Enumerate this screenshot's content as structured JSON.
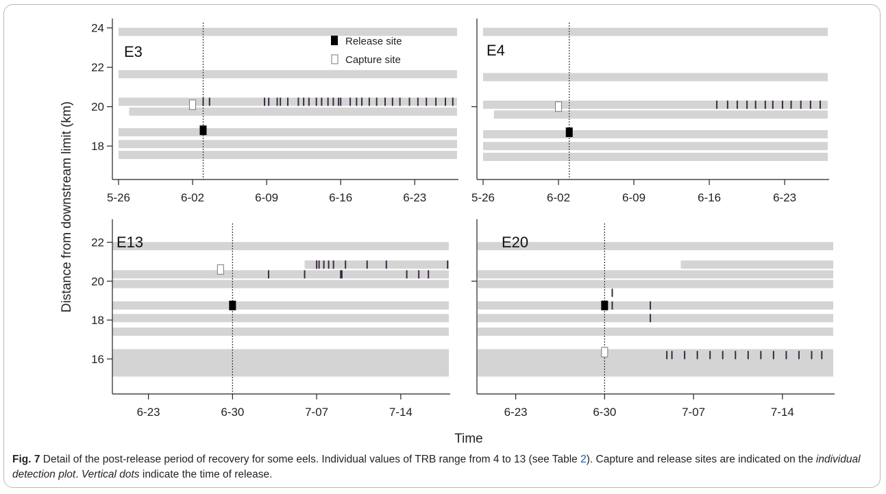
{
  "chart_data": [
    {
      "type": "scatter",
      "label": "E3",
      "x_ticks": [
        "5-26",
        "6-02",
        "6-09",
        "6-16",
        "6-23"
      ],
      "y_ticks": [
        "18",
        "20",
        "22",
        "24"
      ],
      "xlim": [
        "2011-05-26",
        "2011-06-27"
      ],
      "ylim": [
        16.3,
        24.2
      ],
      "release_time": "2011-06-03",
      "release_site": {
        "x": "2011-06-03",
        "y": 18.8
      },
      "capture_site": {
        "x": "2011-06-02",
        "y": 20.1
      },
      "receivers": [
        {
          "y": 23.8,
          "start": "2011-05-26",
          "end": "2011-06-27"
        },
        {
          "y": 21.65,
          "start": "2011-05-26",
          "end": "2011-06-27"
        },
        {
          "y": 20.25,
          "start": "2011-05-26",
          "end": "2011-06-27"
        },
        {
          "y": 19.75,
          "start": "2011-05-27",
          "end": "2011-06-27"
        },
        {
          "y": 18.7,
          "start": "2011-05-26",
          "end": "2011-06-27"
        },
        {
          "y": 18.1,
          "start": "2011-05-26",
          "end": "2011-06-27"
        },
        {
          "y": 17.55,
          "start": "2011-05-26",
          "end": "2011-06-27"
        }
      ],
      "detections": [
        {
          "y": 20.25,
          "t": [
            "2011-06-03",
            "2011-06-03.6",
            "2011-06-08.8",
            "2011-06-09.2",
            "2011-06-10",
            "2011-06-10.3",
            "2011-06-11",
            "2011-06-12",
            "2011-06-12.5",
            "2011-06-13",
            "2011-06-13.7",
            "2011-06-14.2",
            "2011-06-14.8",
            "2011-06-15.3",
            "2011-06-15.8",
            "2011-06-16",
            "2011-06-16.9",
            "2011-06-17.5",
            "2011-06-18",
            "2011-06-18.7",
            "2011-06-19.4",
            "2011-06-20.2",
            "2011-06-20.9",
            "2011-06-21.6",
            "2011-06-22.5",
            "2011-06-23.3",
            "2011-06-24.1",
            "2011-06-25",
            "2011-06-25.9",
            "2011-06-26.6"
          ]
        }
      ]
    },
    {
      "type": "scatter",
      "label": "E4",
      "x_ticks": [
        "5-26",
        "6-02",
        "6-09",
        "6-16",
        "6-23"
      ],
      "y_ticks": [],
      "xlim": [
        "2011-05-26",
        "2011-06-27"
      ],
      "ylim": [
        16.3,
        24.2
      ],
      "release_time": "2011-06-03",
      "release_site": {
        "x": "2011-06-03",
        "y": 18.7
      },
      "capture_site": {
        "x": "2011-06-02",
        "y": 20.0
      },
      "receivers": [
        {
          "y": 23.8,
          "start": "2011-05-26",
          "end": "2011-06-27"
        },
        {
          "y": 21.5,
          "start": "2011-05-26",
          "end": "2011-06-27"
        },
        {
          "y": 20.1,
          "start": "2011-05-26",
          "end": "2011-06-27"
        },
        {
          "y": 19.6,
          "start": "2011-05-27",
          "end": "2011-06-27"
        },
        {
          "y": 18.6,
          "start": "2011-05-26",
          "end": "2011-06-27"
        },
        {
          "y": 18.0,
          "start": "2011-05-26",
          "end": "2011-06-27"
        },
        {
          "y": 17.45,
          "start": "2011-05-26",
          "end": "2011-06-27"
        }
      ],
      "detections": [
        {
          "y": 20.1,
          "t": [
            "2011-06-16.7",
            "2011-06-17.7",
            "2011-06-18.6",
            "2011-06-19.5",
            "2011-06-20.3",
            "2011-06-21.2",
            "2011-06-21.9",
            "2011-06-22.8",
            "2011-06-23.6",
            "2011-06-24.5",
            "2011-06-25.4",
            "2011-06-26.3"
          ]
        }
      ]
    },
    {
      "type": "scatter",
      "label": "E13",
      "x_ticks": [
        "6-23",
        "6-30",
        "7-07",
        "7-14"
      ],
      "y_ticks": [
        "16",
        "18",
        "20",
        "22"
      ],
      "xlim": [
        "2011-06-20",
        "2011-07-18"
      ],
      "ylim": [
        14.2,
        22.9
      ],
      "release_time": "2011-06-30",
      "release_site": {
        "x": "2011-06-30",
        "y": 18.75
      },
      "capture_site": {
        "x": "2011-06-29",
        "y": 20.6
      },
      "receivers": [
        {
          "y": 21.8,
          "start": "2011-06-20",
          "end": "2011-07-18"
        },
        {
          "y": 20.85,
          "start": "2011-07-06",
          "end": "2011-07-18"
        },
        {
          "y": 20.35,
          "start": "2011-06-20",
          "end": "2011-07-18"
        },
        {
          "y": 19.85,
          "start": "2011-06-20",
          "end": "2011-07-18"
        },
        {
          "y": 18.75,
          "start": "2011-06-20",
          "end": "2011-07-18"
        },
        {
          "y": 18.1,
          "start": "2011-06-20",
          "end": "2011-07-18"
        },
        {
          "y": 17.4,
          "start": "2011-06-20",
          "end": "2011-07-18"
        },
        {
          "y": 15.8,
          "start": "2011-06-20",
          "end": "2011-07-18",
          "wide": true
        }
      ],
      "detections": [
        {
          "y": 20.85,
          "t": [
            "2011-07-07",
            "2011-07-07.2",
            "2011-07-07.6",
            "2011-07-08",
            "2011-07-08.4",
            "2011-07-09.4",
            "2011-07-11.2",
            "2011-07-12.8",
            "2011-07-17.9"
          ]
        },
        {
          "y": 20.35,
          "t": [
            "2011-07-03",
            "2011-07-06",
            "2011-07-09",
            "2011-07-09.1",
            "2011-07-14.5",
            "2011-07-15.5",
            "2011-07-16.3"
          ]
        }
      ]
    },
    {
      "type": "scatter",
      "label": "E20",
      "x_ticks": [
        "6-23",
        "6-30",
        "7-07",
        "7-14"
      ],
      "y_ticks": [],
      "xlim": [
        "2011-06-20",
        "2011-07-18"
      ],
      "ylim": [
        14.2,
        22.9
      ],
      "release_time": "2011-06-30",
      "release_site": {
        "x": "2011-06-30",
        "y": 18.75
      },
      "capture_site": {
        "x": "2011-06-30",
        "y": 16.35
      },
      "receivers": [
        {
          "y": 21.8,
          "start": "2011-06-20",
          "end": "2011-07-18"
        },
        {
          "y": 20.85,
          "start": "2011-07-06",
          "end": "2011-07-18"
        },
        {
          "y": 20.35,
          "start": "2011-06-20",
          "end": "2011-07-18"
        },
        {
          "y": 19.85,
          "start": "2011-06-20",
          "end": "2011-07-18"
        },
        {
          "y": 18.75,
          "start": "2011-06-20",
          "end": "2011-07-18"
        },
        {
          "y": 18.1,
          "start": "2011-06-20",
          "end": "2011-07-18"
        },
        {
          "y": 17.4,
          "start": "2011-06-20",
          "end": "2011-07-18"
        },
        {
          "y": 15.8,
          "start": "2011-06-20",
          "end": "2011-07-18",
          "wide": true
        }
      ],
      "detections": [
        {
          "y": 19.4,
          "t": [
            "2011-06-30.6"
          ]
        },
        {
          "y": 18.75,
          "t": [
            "2011-06-30.6",
            "2011-07-03.6"
          ]
        },
        {
          "y": 18.1,
          "t": [
            "2011-07-03.6"
          ]
        },
        {
          "y": 16.2,
          "t": [
            "2011-07-04.9",
            "2011-07-05.3",
            "2011-07-06.3",
            "2011-07-07.3",
            "2011-07-08.3",
            "2011-07-09.3",
            "2011-07-10.3",
            "2011-07-11.3",
            "2011-07-12.3",
            "2011-07-13.3",
            "2011-07-14.3",
            "2011-07-15.3",
            "2011-07-16.3",
            "2011-07-17.1"
          ]
        }
      ]
    }
  ],
  "legend": {
    "release": "Release site",
    "capture": "Capture site"
  },
  "axes": {
    "ylabel": "Distance from downstream limit (km)",
    "xlabel": "Time"
  },
  "caption": {
    "fig": "Fig. 7",
    "part1": " Detail of the post-release period of recovery for some eels. Individual values of TRB range from 4 to 13 (see Table ",
    "table_ref": "2",
    "part2": "). Capture and release sites are indicated on the ",
    "italic1": "individual detection plot",
    "part3": ". ",
    "italic2": "Vertical dots",
    "part4": " indicate the time of release."
  },
  "colors": {
    "receiver": "#d4d4d4",
    "detection": "#3a2a40",
    "release_marker": "#000000",
    "capture_marker": "#ffffff",
    "axis": "#222222"
  }
}
